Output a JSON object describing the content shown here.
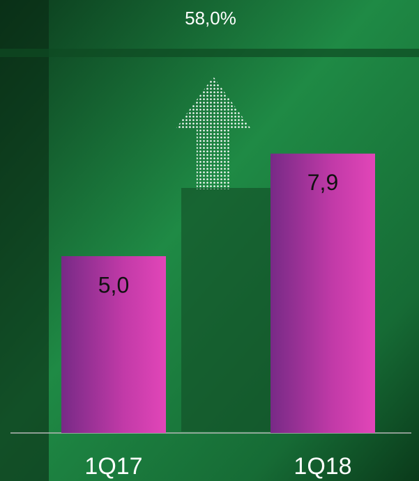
{
  "chart_data": {
    "type": "bar",
    "annotation": "58,0%",
    "categories": [
      "1Q17",
      "1Q18"
    ],
    "values": [
      5.0,
      7.9
    ],
    "value_labels": [
      "5,0",
      "7,9"
    ]
  }
}
